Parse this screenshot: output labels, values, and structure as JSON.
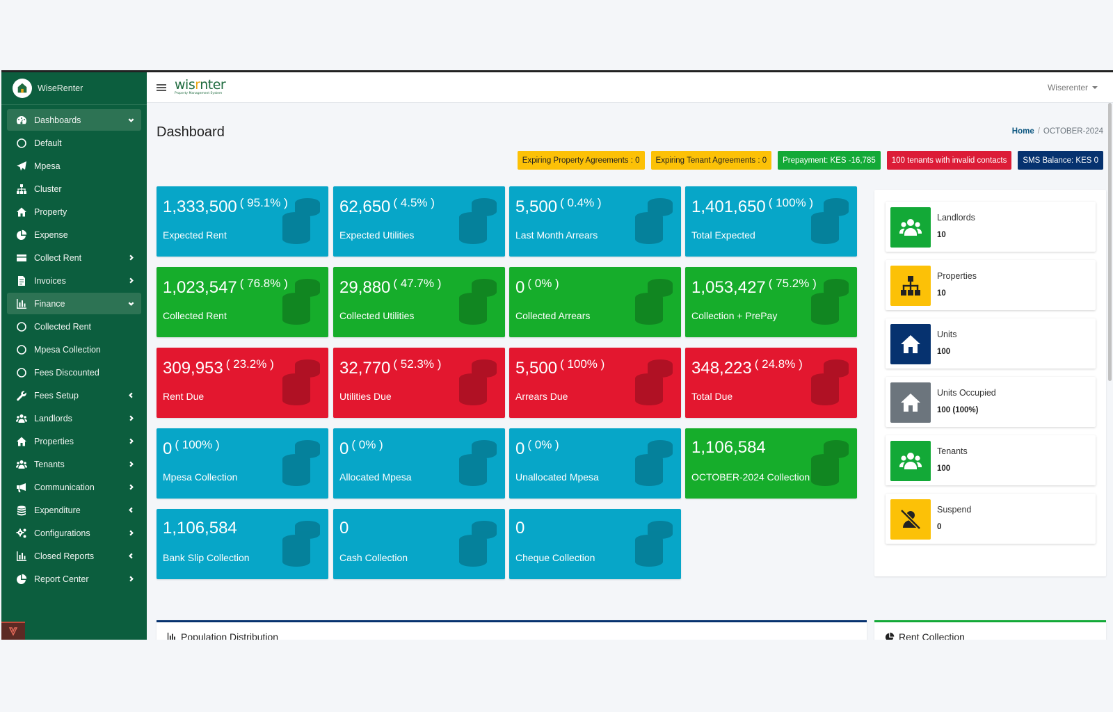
{
  "app": {
    "name": "WiseRenter"
  },
  "sidebar": {
    "items": [
      {
        "label": "Dashboards",
        "icon": "tachometer-icon"
      },
      {
        "label": "Default",
        "icon": "circle-icon"
      },
      {
        "label": "Mpesa",
        "icon": "paper-plane-icon"
      },
      {
        "label": "Cluster",
        "icon": "sitemap-icon"
      },
      {
        "label": "Property",
        "icon": "home-icon"
      },
      {
        "label": "Expense",
        "icon": "pie-chart-icon"
      },
      {
        "label": "Collect Rent",
        "icon": "credit-card-icon"
      },
      {
        "label": "Invoices",
        "icon": "file-invoice-icon"
      },
      {
        "label": "Finance",
        "icon": "bar-chart-icon"
      },
      {
        "label": "Collected Rent",
        "icon": "circle-icon"
      },
      {
        "label": "Mpesa Collection",
        "icon": "circle-icon"
      },
      {
        "label": "Fees Discounted",
        "icon": "circle-icon"
      },
      {
        "label": "Fees Setup",
        "icon": "wrench-icon"
      },
      {
        "label": "Landlords",
        "icon": "users-icon"
      },
      {
        "label": "Properties",
        "icon": "home-icon"
      },
      {
        "label": "Tenants",
        "icon": "users-icon"
      },
      {
        "label": "Communication",
        "icon": "bullhorn-icon"
      },
      {
        "label": "Expenditure",
        "icon": "coins-icon"
      },
      {
        "label": "Configurations",
        "icon": "cogs-icon"
      },
      {
        "label": "Closed Reports",
        "icon": "bar-chart-icon"
      },
      {
        "label": "Report Center",
        "icon": "pie-chart-icon"
      }
    ]
  },
  "topbar": {
    "logo_main_a": "wis",
    "logo_main_r": "r",
    "logo_main_b": "nter",
    "logo_sub": "Property Management System",
    "user": "Wiserenter"
  },
  "page": {
    "title": "Dashboard",
    "breadcrumb_home": "Home",
    "breadcrumb_sep": "/",
    "breadcrumb_current": "OCTOBER-2024"
  },
  "badges": [
    "Expiring Property Agreements : 0",
    "Expiring Tenant Agreements : 0",
    "Prepayment: KES -16,785",
    "100 tenants with invalid contacts",
    "SMS Balance: KES 0"
  ],
  "cards": [
    {
      "value": "1,333,500",
      "pct": "( 95.1% )",
      "caption": "Expected Rent",
      "color": "#07a6c8"
    },
    {
      "value": "62,650",
      "pct": "( 4.5% )",
      "caption": "Expected Utilities",
      "color": "#07a6c8"
    },
    {
      "value": "5,500",
      "pct": "( 0.4% )",
      "caption": "Last Month Arrears",
      "color": "#07a6c8"
    },
    {
      "value": "1,401,650",
      "pct": "( 100% )",
      "caption": "Total Expected",
      "color": "#07a6c8"
    },
    {
      "value": "1,023,547",
      "pct": "( 76.8% )",
      "caption": "Collected Rent",
      "color": "#16ad2b"
    },
    {
      "value": "29,880",
      "pct": "( 47.7% )",
      "caption": "Collected Utilities",
      "color": "#16ad2b"
    },
    {
      "value": "0",
      "pct": "( 0% )",
      "caption": "Collected Arrears",
      "color": "#16ad2b"
    },
    {
      "value": "1,053,427",
      "pct": "( 75.2% )",
      "caption": "Collection + PrePay",
      "color": "#16ad2b"
    },
    {
      "value": "309,953",
      "pct": "( 23.2% )",
      "caption": "Rent Due",
      "color": "#e3172f"
    },
    {
      "value": "32,770",
      "pct": "( 52.3% )",
      "caption": "Utilities Due",
      "color": "#e3172f"
    },
    {
      "value": "5,500",
      "pct": "( 100% )",
      "caption": "Arrears Due",
      "color": "#e3172f"
    },
    {
      "value": "348,223",
      "pct": "( 24.8% )",
      "caption": "Total Due",
      "color": "#e3172f"
    },
    {
      "value": "0",
      "pct": "( 100% )",
      "caption": "Mpesa Collection",
      "color": "#07a6c8"
    },
    {
      "value": "0",
      "pct": "( 0% )",
      "caption": "Allocated Mpesa",
      "color": "#07a6c8"
    },
    {
      "value": "0",
      "pct": "( 0% )",
      "caption": "Unallocated Mpesa",
      "color": "#07a6c8"
    },
    {
      "value": "1,106,584",
      "pct": "",
      "caption": "OCTOBER-2024 Collection",
      "color": "#16ad2b"
    },
    {
      "value": "1,106,584",
      "pct": "",
      "caption": "Bank Slip Collection",
      "color": "#07a6c8"
    },
    {
      "value": "0",
      "pct": "",
      "caption": "Cash Collection",
      "color": "#07a6c8"
    },
    {
      "value": "0",
      "pct": "",
      "caption": "Cheque Collection",
      "color": "#07a6c8"
    }
  ],
  "info_boxes": [
    {
      "label": "Landlords",
      "value": "10",
      "icon": "users-icon",
      "color": "#13a937"
    },
    {
      "label": "Properties",
      "value": "10",
      "icon": "sitemap-icon",
      "color": "#fcc107"
    },
    {
      "label": "Units",
      "value": "100",
      "icon": "home-icon",
      "color": "#06326f"
    },
    {
      "label": "Units Occupied",
      "value": "100 (100%)",
      "icon": "home-icon",
      "color": "#6c757d"
    },
    {
      "label": "Tenants",
      "value": "100",
      "icon": "users-icon",
      "color": "#13a937"
    },
    {
      "label": "Suspend",
      "value": "0",
      "icon": "user-slash-icon",
      "color": "#fcc107"
    }
  ],
  "panels": {
    "population_title": "Population Distribution",
    "rent_collection_title": "Rent Collection"
  }
}
